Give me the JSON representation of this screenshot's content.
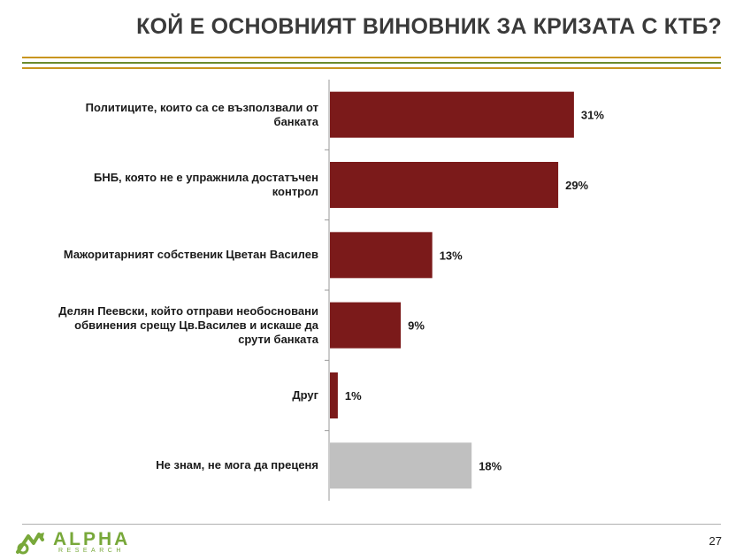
{
  "title": "КОЙ Е ОСНОВНИЯТ ВИНОВНИК ЗА КРИЗАТА С КТБ?",
  "page_number": "27",
  "logo": {
    "word": "ALPHA",
    "sub": "RESEARCH"
  },
  "colors": {
    "bar": "#7b1a1a",
    "bar_other": "#c0c0c0",
    "rule_gold": "#c8951f",
    "rule_green": "#6a8a2e",
    "logo_green": "#78a83a"
  },
  "chart_data": {
    "type": "bar",
    "orientation": "horizontal",
    "title": "КОЙ Е ОСНОВНИЯТ ВИНОВНИК ЗА КРИЗАТА С КТБ?",
    "categories": [
      "Политиците, които са се възползвали от банката",
      "БНБ, която не е упражнила достатъчен контрол",
      "Мажоритарният собственик Цветан Василев",
      "Делян Пеевски, който отправи необосновани обвинения срещу Цв.Василев и искаше да срути банката",
      "Друг",
      "Не знам, не мога да преценя"
    ],
    "category_lines": [
      [
        "Политиците, които са се възползвали от",
        "банката"
      ],
      [
        "БНБ, която не е упражнила достатъчен",
        "контрол"
      ],
      [
        "Мажоритарният собственик Цветан Василев"
      ],
      [
        "Делян Пеевски, който отправи необосновани",
        "обвинения срещу Цв.Василев и искаше да",
        "срути банката"
      ],
      [
        "Друг"
      ],
      [
        "Не знам, не мога да преценя"
      ]
    ],
    "values": [
      31,
      29,
      13,
      9,
      1,
      18
    ],
    "value_labels": [
      "31%",
      "29%",
      "13%",
      "9%",
      "1%",
      "18%"
    ],
    "unit": "%",
    "highlight": [
      false,
      false,
      false,
      false,
      false,
      true
    ],
    "xlim": [
      0,
      35
    ],
    "grid": false,
    "legend": "none"
  }
}
